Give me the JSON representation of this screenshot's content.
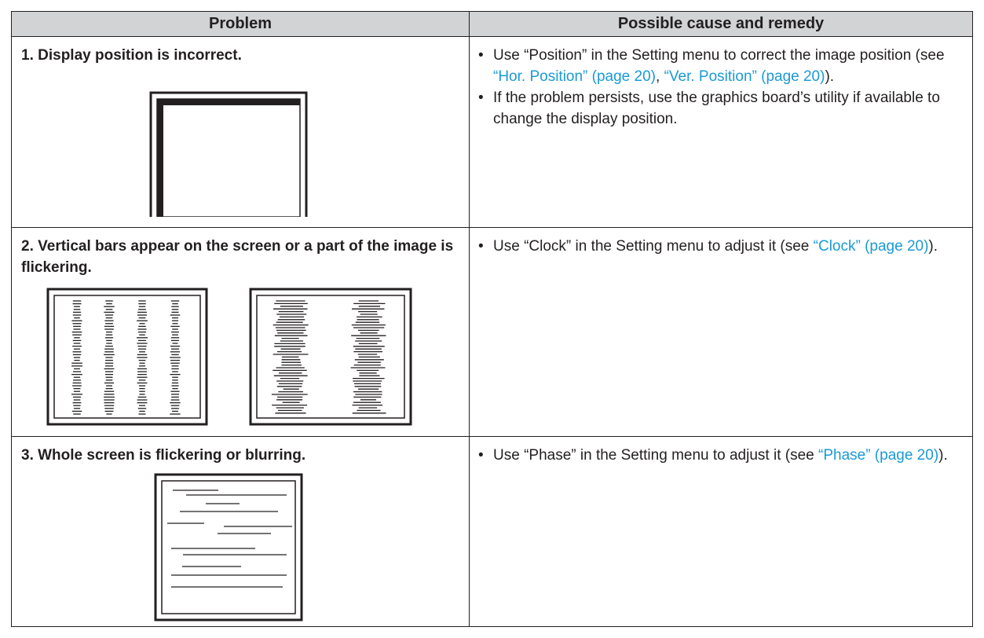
{
  "table": {
    "header": [
      "Problem",
      "Possible cause and remedy"
    ],
    "rows": [
      {
        "problem": "1.  Display position is incorrect.",
        "remedy": [
          [
            "Use “Position” in the Setting menu to correct the image position (see ",
            {
              "link": "“Hor. Position” (page 20)"
            },
            ", ",
            {
              "link": "“Ver. Position” (page 20)"
            },
            ")."
          ],
          [
            "If the problem persists, use the graphics board’s utility if available to change the display position."
          ]
        ]
      },
      {
        "problem": "2.  Vertical bars appear on the screen or a part of the image is flickering.",
        "remedy": [
          [
            "Use “Clock” in the Setting menu to adjust it (see ",
            {
              "link": "“Clock” (page 20)"
            },
            ")."
          ]
        ]
      },
      {
        "problem": "3.  Whole screen is flickering or blurring.",
        "remedy": [
          [
            "Use “Phase” in the Setting menu to adjust it (see ",
            {
              "link": "“Phase” (page 20)"
            },
            ")."
          ]
        ]
      }
    ]
  }
}
